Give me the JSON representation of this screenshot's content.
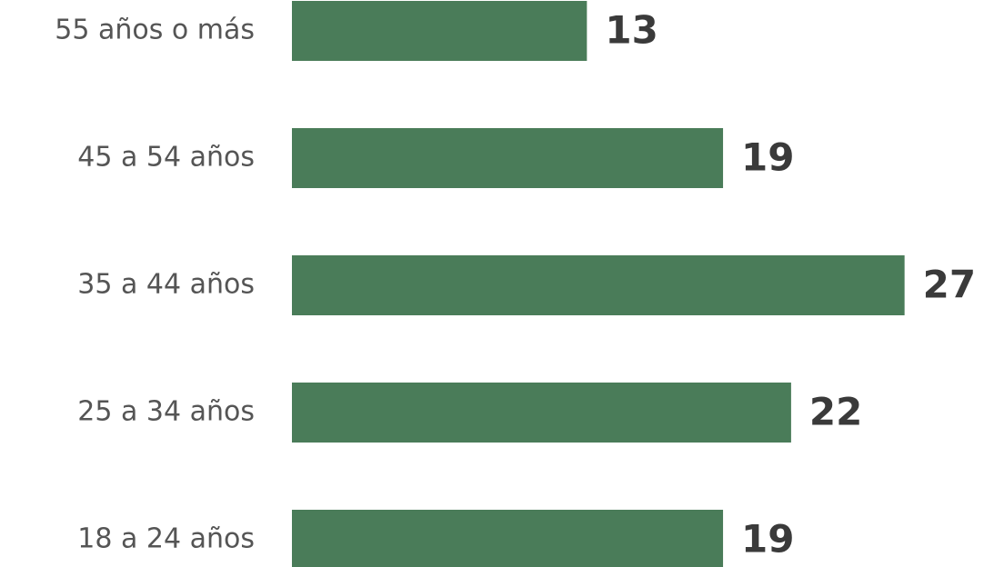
{
  "chart_data": {
    "type": "bar",
    "orientation": "horizontal",
    "categories": [
      "55 años o más",
      "45 a 54 años",
      "35 a 44 años",
      "25 a 34 años",
      "18 a 24 años"
    ],
    "values": [
      13,
      19,
      27,
      22,
      19
    ],
    "color": "#4a7c59"
  }
}
